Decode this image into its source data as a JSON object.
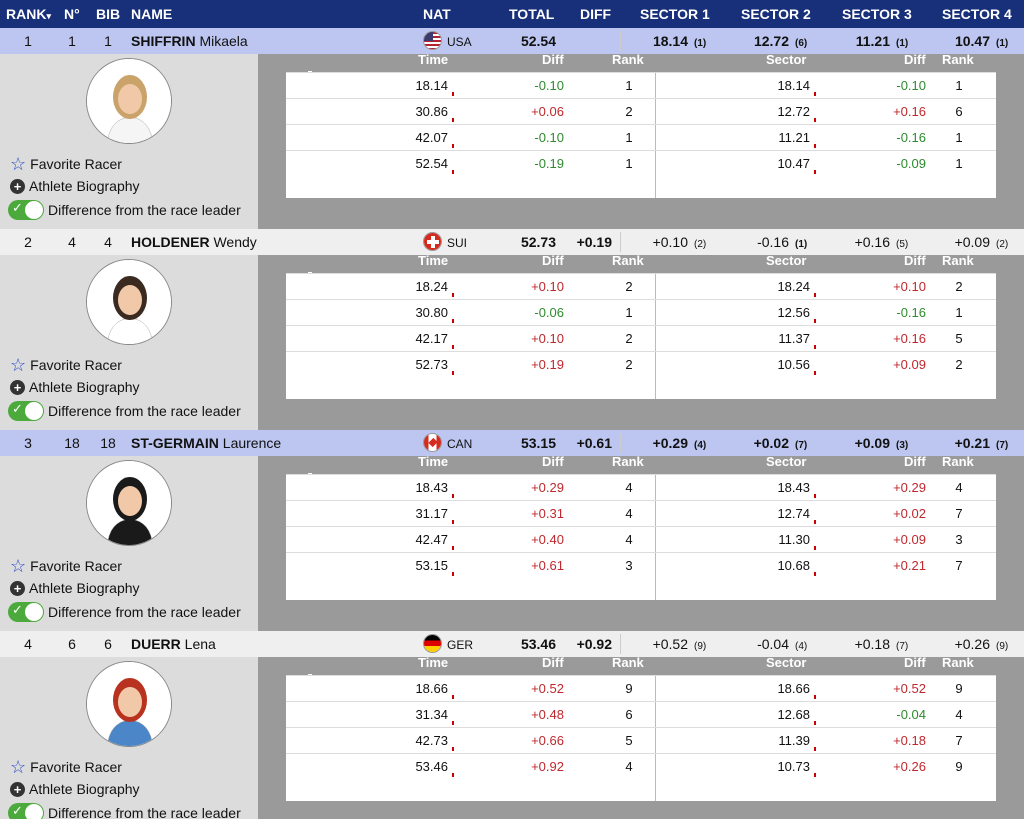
{
  "header": {
    "rank": "RANK",
    "rank_sort": "▾",
    "no": "N°",
    "bib": "BIB",
    "name": "NAME",
    "nat": "NAT",
    "total": "TOTAL",
    "diff": "DIFF",
    "sector1": "SECTOR 1",
    "sector2": "SECTOR 2",
    "sector3": "SECTOR 3",
    "sector4": "SECTOR 4"
  },
  "detail_labels": {
    "time": "Time",
    "diff": "Diff",
    "rank": "Rank",
    "sector": "Sector",
    "sdiff": "Diff",
    "srank": "Rank",
    "favorite": "Favorite Racer",
    "biography": "Athlete Biography",
    "difference": "Difference from the race leader"
  },
  "colors": {
    "header_bg": "#18307a",
    "highlight_row": "#bcc6f0",
    "positive": "#c0282d",
    "negative": "#2e8b2e",
    "toggle_on": "#4caa3c"
  },
  "athletes": [
    {
      "rank": "1",
      "no": "1",
      "bib": "1",
      "last": "SHIFFRIN",
      "first": "Mikaela",
      "nat": "USA",
      "total": "52.54",
      "diff": "",
      "highlight": true,
      "sectors": [
        {
          "value": "18.14",
          "rank": "(1)"
        },
        {
          "value": "12.72",
          "rank": "(6)"
        },
        {
          "value": "11.21",
          "rank": "(1)"
        },
        {
          "value": "10.47",
          "rank": "(1)"
        }
      ],
      "rows": [
        {
          "time": "18.14",
          "diff": "-0.10",
          "rank": "1",
          "sector": "18.14",
          "sdiff": "-0.10",
          "srank": "1"
        },
        {
          "time": "30.86",
          "diff": "+0.06",
          "rank": "2",
          "sector": "12.72",
          "sdiff": "+0.16",
          "srank": "6"
        },
        {
          "time": "42.07",
          "diff": "-0.10",
          "rank": "1",
          "sector": "11.21",
          "sdiff": "-0.16",
          "srank": "1"
        },
        {
          "time": "52.54",
          "diff": "-0.19",
          "rank": "1",
          "sector": "10.47",
          "sdiff": "-0.09",
          "srank": "1"
        }
      ]
    },
    {
      "rank": "2",
      "no": "4",
      "bib": "4",
      "last": "HOLDENER",
      "first": "Wendy",
      "nat": "SUI",
      "total": "52.73",
      "diff": "+0.19",
      "highlight": false,
      "sectors": [
        {
          "value": "+0.10",
          "rank": "(2)"
        },
        {
          "value": "-0.16",
          "rank": "(1)"
        },
        {
          "value": "+0.16",
          "rank": "(5)"
        },
        {
          "value": "+0.09",
          "rank": "(2)"
        }
      ],
      "rows": [
        {
          "time": "18.24",
          "diff": "+0.10",
          "rank": "2",
          "sector": "18.24",
          "sdiff": "+0.10",
          "srank": "2"
        },
        {
          "time": "30.80",
          "diff": "-0.06",
          "rank": "1",
          "sector": "12.56",
          "sdiff": "-0.16",
          "srank": "1"
        },
        {
          "time": "42.17",
          "diff": "+0.10",
          "rank": "2",
          "sector": "11.37",
          "sdiff": "+0.16",
          "srank": "5"
        },
        {
          "time": "52.73",
          "diff": "+0.19",
          "rank": "2",
          "sector": "10.56",
          "sdiff": "+0.09",
          "srank": "2"
        }
      ]
    },
    {
      "rank": "3",
      "no": "18",
      "bib": "18",
      "last": "ST-GERMAIN",
      "first": "Laurence",
      "nat": "CAN",
      "total": "53.15",
      "diff": "+0.61",
      "highlight": true,
      "sectors": [
        {
          "value": "+0.29",
          "rank": "(4)"
        },
        {
          "value": "+0.02",
          "rank": "(7)"
        },
        {
          "value": "+0.09",
          "rank": "(3)"
        },
        {
          "value": "+0.21",
          "rank": "(7)"
        }
      ],
      "rows": [
        {
          "time": "18.43",
          "diff": "+0.29",
          "rank": "4",
          "sector": "18.43",
          "sdiff": "+0.29",
          "srank": "4"
        },
        {
          "time": "31.17",
          "diff": "+0.31",
          "rank": "4",
          "sector": "12.74",
          "sdiff": "+0.02",
          "srank": "7"
        },
        {
          "time": "42.47",
          "diff": "+0.40",
          "rank": "4",
          "sector": "11.30",
          "sdiff": "+0.09",
          "srank": "3"
        },
        {
          "time": "53.15",
          "diff": "+0.61",
          "rank": "3",
          "sector": "10.68",
          "sdiff": "+0.21",
          "srank": "7"
        }
      ]
    },
    {
      "rank": "4",
      "no": "6",
      "bib": "6",
      "last": "DUERR",
      "first": "Lena",
      "nat": "GER",
      "total": "53.46",
      "diff": "+0.92",
      "highlight": false,
      "sectors": [
        {
          "value": "+0.52",
          "rank": "(9)"
        },
        {
          "value": "-0.04",
          "rank": "(4)"
        },
        {
          "value": "+0.18",
          "rank": "(7)"
        },
        {
          "value": "+0.26",
          "rank": "(9)"
        }
      ],
      "rows": [
        {
          "time": "18.66",
          "diff": "+0.52",
          "rank": "9",
          "sector": "18.66",
          "sdiff": "+0.52",
          "srank": "9"
        },
        {
          "time": "31.34",
          "diff": "+0.48",
          "rank": "6",
          "sector": "12.68",
          "sdiff": "-0.04",
          "srank": "4"
        },
        {
          "time": "42.73",
          "diff": "+0.66",
          "rank": "5",
          "sector": "11.39",
          "sdiff": "+0.18",
          "srank": "7"
        },
        {
          "time": "53.46",
          "diff": "+0.92",
          "rank": "4",
          "sector": "10.73",
          "sdiff": "+0.26",
          "srank": "9"
        }
      ]
    }
  ]
}
